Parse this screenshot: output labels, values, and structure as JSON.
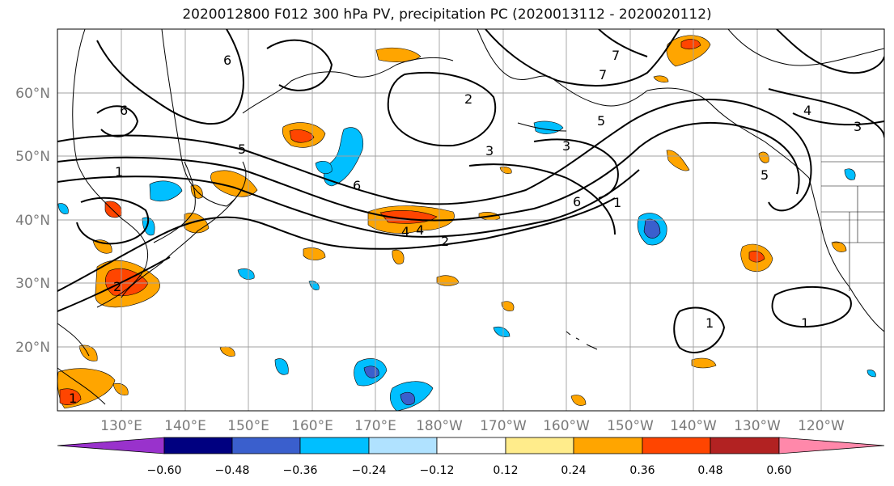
{
  "title": "2020012800 F012 300 hPa PV, precipitation PC (2020013112 - 2020020112)",
  "map": {
    "lon_labels": [
      "130°E",
      "140°E",
      "150°E",
      "160°E",
      "170°E",
      "180°W",
      "170°W",
      "160°W",
      "150°W",
      "140°W",
      "130°W",
      "120°W"
    ],
    "lat_labels": [
      "60°N",
      "50°N",
      "40°N",
      "30°N",
      "20°N"
    ],
    "pv_contour_labels": [
      "1",
      "2",
      "3",
      "4",
      "5",
      "6",
      "7",
      "1",
      "2",
      "3",
      "4",
      "5",
      "6",
      "7",
      "1",
      "2",
      "3",
      "4",
      "5",
      "6",
      "1",
      "1",
      "6"
    ]
  },
  "colorbar": {
    "tick_labels": [
      "−0.60",
      "−0.48",
      "−0.36",
      "−0.24",
      "−0.12",
      "0.12",
      "0.24",
      "0.36",
      "0.48",
      "0.60"
    ],
    "colors": [
      "#9932cc",
      "#000080",
      "#3a5fcd",
      "#00bfff",
      "#b0e2ff",
      "#ffffff",
      "#ffec8b",
      "#ffa500",
      "#ff4500",
      "#b22222",
      "#ff88aa"
    ]
  }
}
